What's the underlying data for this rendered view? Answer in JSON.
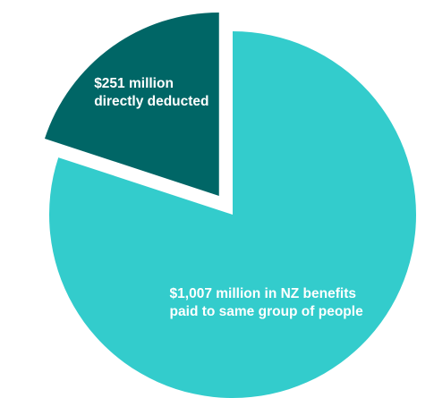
{
  "chart_data": {
    "type": "pie",
    "title": "",
    "slices": [
      {
        "value": 1007,
        "label_lines": [
          "$1,007 million in NZ benefits",
          "paid to same group of people"
        ],
        "color": "#33CCCC",
        "exploded": false
      },
      {
        "value": 251,
        "label_lines": [
          "$251 million",
          "directly deducted"
        ],
        "color": "#006666",
        "exploded": true
      }
    ],
    "start_angle_deg": 0,
    "direction": "clockwise",
    "legend": "none"
  }
}
